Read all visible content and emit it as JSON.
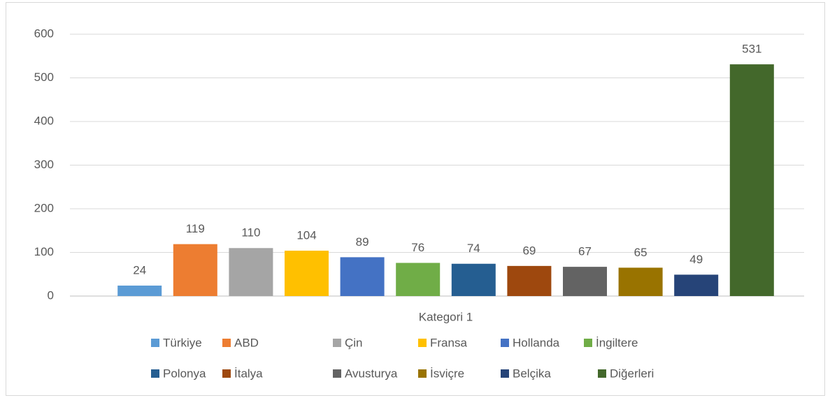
{
  "chart_data": {
    "type": "bar",
    "categories": [
      "Kategori 1"
    ],
    "series": [
      {
        "name": "Türkiye",
        "color": "#5b9bd5",
        "values": [
          24
        ]
      },
      {
        "name": "ABD",
        "color": "#ed7d31",
        "values": [
          119
        ]
      },
      {
        "name": "Çin",
        "color": "#a5a5a5",
        "values": [
          110
        ]
      },
      {
        "name": "Fransa",
        "color": "#ffc000",
        "values": [
          104
        ]
      },
      {
        "name": "Hollanda",
        "color": "#4472c4",
        "values": [
          89
        ]
      },
      {
        "name": "İngiltere",
        "color": "#70ad47",
        "values": [
          76
        ]
      },
      {
        "name": "Polonya",
        "color": "#255e91",
        "values": [
          74
        ]
      },
      {
        "name": "İtalya",
        "color": "#9e480e",
        "values": [
          69
        ]
      },
      {
        "name": "Avusturya",
        "color": "#636363",
        "values": [
          67
        ]
      },
      {
        "name": "İsviçre",
        "color": "#997300",
        "values": [
          65
        ]
      },
      {
        "name": "Belçika",
        "color": "#264478",
        "values": [
          49
        ]
      },
      {
        "name": "Diğerleri",
        "color": "#43682b",
        "values": [
          531
        ]
      }
    ],
    "ylim": [
      0,
      600
    ],
    "yticks": [
      0,
      100,
      200,
      300,
      400,
      500,
      600
    ],
    "grid": true,
    "legend": "bottom"
  }
}
